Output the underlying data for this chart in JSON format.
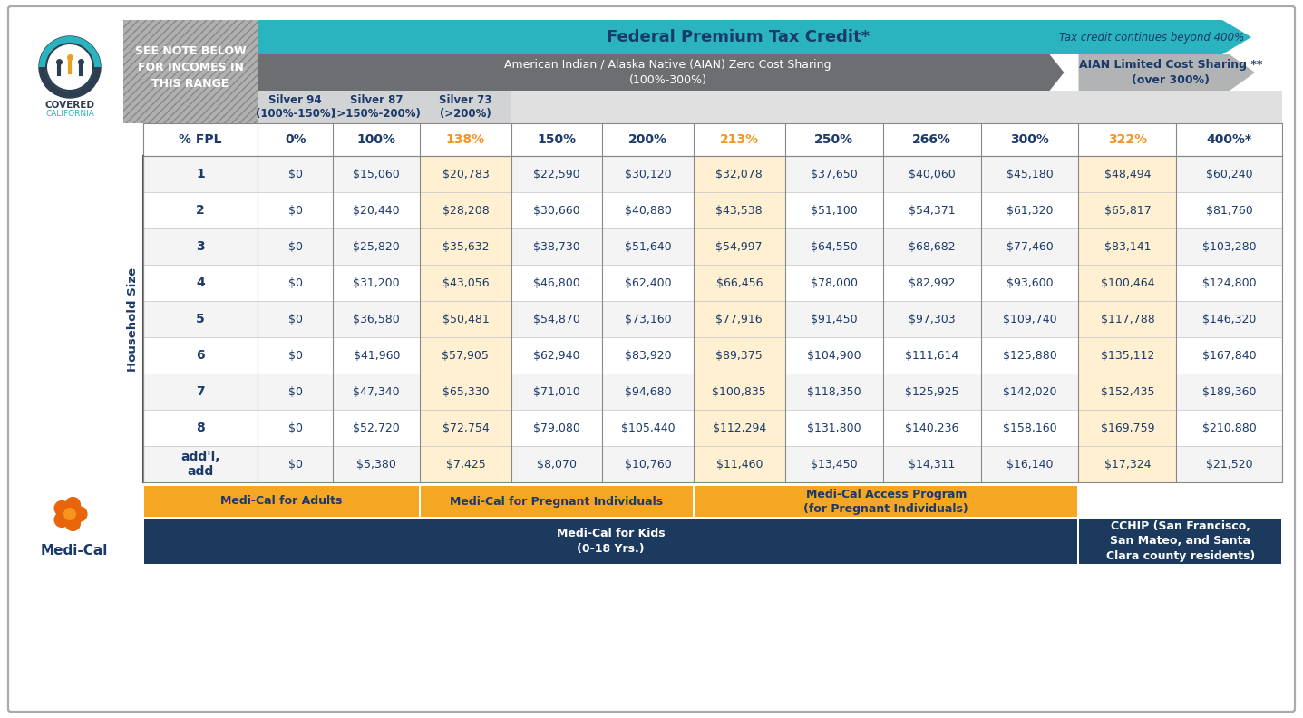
{
  "header_row": [
    "% FPL",
    "0%",
    "100%",
    "138%",
    "150%",
    "200%",
    "213%",
    "250%",
    "266%",
    "300%",
    "322%",
    "400%*"
  ],
  "rows": [
    [
      "1",
      "$0",
      "$15,060",
      "$20,783",
      "$22,590",
      "$30,120",
      "$32,078",
      "$37,650",
      "$40,060",
      "$45,180",
      "$48,494",
      "$60,240"
    ],
    [
      "2",
      "$0",
      "$20,440",
      "$28,208",
      "$30,660",
      "$40,880",
      "$43,538",
      "$51,100",
      "$54,371",
      "$61,320",
      "$65,817",
      "$81,760"
    ],
    [
      "3",
      "$0",
      "$25,820",
      "$35,632",
      "$38,730",
      "$51,640",
      "$54,997",
      "$64,550",
      "$68,682",
      "$77,460",
      "$83,141",
      "$103,280"
    ],
    [
      "4",
      "$0",
      "$31,200",
      "$43,056",
      "$46,800",
      "$62,400",
      "$66,456",
      "$78,000",
      "$82,992",
      "$93,600",
      "$100,464",
      "$124,800"
    ],
    [
      "5",
      "$0",
      "$36,580",
      "$50,481",
      "$54,870",
      "$73,160",
      "$77,916",
      "$91,450",
      "$97,303",
      "$109,740",
      "$117,788",
      "$146,320"
    ],
    [
      "6",
      "$0",
      "$41,960",
      "$57,905",
      "$62,940",
      "$83,920",
      "$89,375",
      "$104,900",
      "$111,614",
      "$125,880",
      "$135,112",
      "$167,840"
    ],
    [
      "7",
      "$0",
      "$47,340",
      "$65,330",
      "$71,010",
      "$94,680",
      "$100,835",
      "$118,350",
      "$125,925",
      "$142,020",
      "$152,435",
      "$189,360"
    ],
    [
      "8",
      "$0",
      "$52,720",
      "$72,754",
      "$79,080",
      "$105,440",
      "$112,294",
      "$131,800",
      "$140,236",
      "$158,160",
      "$169,759",
      "$210,880"
    ],
    [
      "add'l,\nadd",
      "$0",
      "$5,380",
      "$7,425",
      "$8,070",
      "$10,760",
      "$11,460",
      "$13,450",
      "$14,311",
      "$16,140",
      "$17,324",
      "$21,520"
    ]
  ],
  "highlight_cols": [
    false,
    false,
    false,
    true,
    false,
    false,
    true,
    false,
    false,
    false,
    true,
    false
  ],
  "highlight_colors": [
    "#f7941d",
    "#f7941d",
    "#f7941d"
  ],
  "teal": "#2ab4c0",
  "gray_arrow": "#6d6e71",
  "light_gray_arrow": "#b1b3b4",
  "silver_bg": "#d1d3d4",
  "dark_blue": "#1b3a6b",
  "orange": "#f7941d",
  "gold": "#f5a623",
  "medi_blue": "#1b3a5e",
  "white": "#ffffff",
  "row_odd": "#f4f4f4",
  "row_even": "#ffffff",
  "border_color": "#888888",
  "light_border": "#cccccc"
}
